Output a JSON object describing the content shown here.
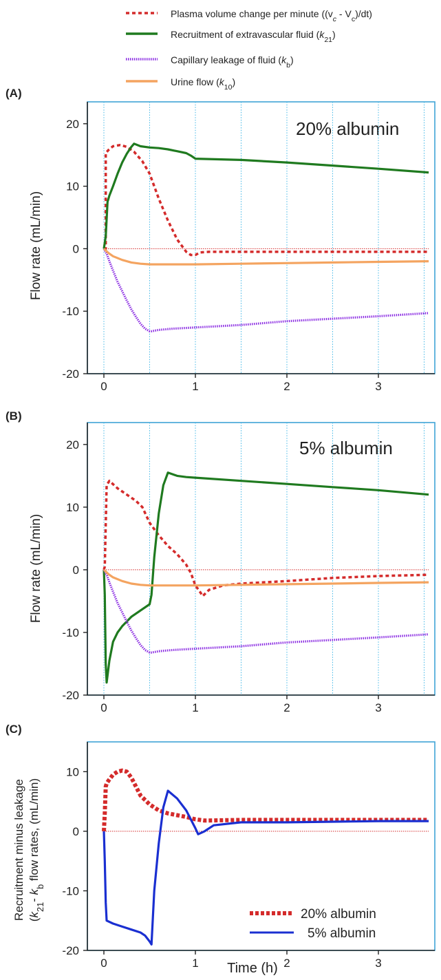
{
  "legend": {
    "items": [
      {
        "id": "plasma",
        "parts": [
          {
            "t": "Plasma volume change per minute ((v"
          },
          {
            "t": "c",
            "sub": true,
            "it": true
          },
          {
            "t": " - V"
          },
          {
            "t": "c",
            "sub": true
          },
          {
            "t": ")/dt)"
          }
        ]
      },
      {
        "id": "recruit",
        "parts": [
          {
            "t": "Recruitment of extravascular fluid ("
          },
          {
            "t": "k",
            "it": true
          },
          {
            "t": "21",
            "sub": true
          },
          {
            "t": ")"
          }
        ]
      },
      {
        "id": "leak",
        "parts": [
          {
            "t": "Capillary leakage of fluid ("
          },
          {
            "t": "k",
            "it": true
          },
          {
            "t": "b",
            "sub": true
          },
          {
            "t": ")"
          }
        ]
      },
      {
        "id": "urine",
        "parts": [
          {
            "t": "Urine flow ("
          },
          {
            "t": "k",
            "it": true
          },
          {
            "t": "10",
            "sub": true
          },
          {
            "t": ")"
          }
        ]
      }
    ]
  },
  "colors": {
    "plasma": "#d42b2b",
    "recruit": "#1f7a1f",
    "leak": "#8a2be2",
    "urine": "#f4a460",
    "diff20": "#d42b2b",
    "diff5": "#1a2fd1",
    "anno20": "#c0203a",
    "anno5": "#2437c4"
  },
  "panels": {
    "A": {
      "label": "(A)",
      "ylabel": "Flow rate  (mL/min)",
      "annotation": "20% albumin"
    },
    "B": {
      "label": "(B)",
      "ylabel": "Flow rate  (mL/min)",
      "annotation": "5% albumin"
    },
    "C": {
      "label": "(C)",
      "ylabel_line1": "Recruitment minus leakage",
      "ylabel_line2_parts": [
        {
          "t": "("
        },
        {
          "t": "k",
          "it": true
        },
        {
          "t": "21",
          "sub": true
        },
        {
          "t": "- "
        },
        {
          "t": "k",
          "it": true
        },
        {
          "t": "b",
          "sub": true
        },
        {
          "t": " flow rates, (mL/min)"
        }
      ],
      "xlabel": "Time (h)",
      "legend": [
        "20% albumin",
        "5% albumin"
      ]
    }
  },
  "chart_data": [
    {
      "type": "line",
      "panel": "A",
      "title": "",
      "xlabel": "",
      "ylabel": "Flow rate  (mL/min)",
      "xlim": [
        -0.17,
        3.62
      ],
      "ylim": [
        -20,
        23.5
      ],
      "xticks": [
        0,
        1,
        2,
        3
      ],
      "yticks": [
        20,
        10,
        0,
        -10,
        -20
      ],
      "vgrid": [
        0,
        0.5,
        1,
        1.5,
        2,
        2.5,
        3,
        3.5
      ],
      "zero_line": [
        0,
        3.55
      ],
      "series": [
        {
          "name": "Plasma volume change per minute",
          "key": "plasma",
          "style": "dashed",
          "x": [
            0,
            0.02,
            0.02,
            0.05,
            0.1,
            0.18,
            0.25,
            0.33,
            0.42,
            0.5,
            0.6,
            0.7,
            0.8,
            0.9,
            0.95,
            1.0,
            1.05,
            1.15,
            1.5,
            2.0,
            2.5,
            3.0,
            3.55
          ],
          "y": [
            0,
            0,
            15.3,
            15.8,
            16.4,
            16.6,
            16.3,
            15.5,
            14.0,
            12.0,
            8.0,
            4.5,
            1.5,
            -0.5,
            -1.0,
            -1.0,
            -0.6,
            -0.5,
            -0.5,
            -0.5,
            -0.5,
            -0.5,
            -0.5
          ]
        },
        {
          "name": "Recruitment of extravascular fluid",
          "key": "recruit",
          "style": "solid",
          "x": [
            0,
            0.02,
            0.04,
            0.06,
            0.1,
            0.15,
            0.2,
            0.25,
            0.3,
            0.33,
            0.4,
            0.5,
            0.6,
            0.7,
            0.8,
            0.9,
            0.95,
            1.0,
            1.5,
            2.0,
            2.5,
            3.0,
            3.55
          ],
          "y": [
            0,
            2.0,
            7.5,
            8.5,
            10.0,
            12.0,
            13.8,
            15.2,
            16.3,
            16.8,
            16.4,
            16.2,
            16.1,
            15.9,
            15.6,
            15.3,
            14.9,
            14.4,
            14.2,
            13.8,
            13.3,
            12.8,
            12.2
          ]
        },
        {
          "name": "Capillary leakage of fluid",
          "key": "leak",
          "style": "dotted",
          "x": [
            0,
            0.03,
            0.06,
            0.1,
            0.15,
            0.2,
            0.25,
            0.3,
            0.35,
            0.4,
            0.45,
            0.5,
            0.52,
            0.6,
            0.75,
            1.0,
            1.5,
            2.0,
            2.5,
            3.0,
            3.55
          ],
          "y": [
            0,
            -0.8,
            -2.0,
            -3.5,
            -5.3,
            -6.8,
            -8.3,
            -9.7,
            -10.9,
            -12.0,
            -12.8,
            -13.2,
            -13.2,
            -13.0,
            -12.8,
            -12.6,
            -12.2,
            -11.6,
            -11.2,
            -10.8,
            -10.3
          ]
        },
        {
          "name": "Urine flow",
          "key": "urine",
          "style": "solid",
          "x": [
            0,
            0.05,
            0.1,
            0.2,
            0.3,
            0.4,
            0.5,
            0.6,
            0.8,
            1.0,
            1.5,
            2.0,
            2.5,
            3.0,
            3.55
          ],
          "y": [
            0,
            -0.7,
            -1.2,
            -1.8,
            -2.2,
            -2.4,
            -2.5,
            -2.5,
            -2.5,
            -2.5,
            -2.4,
            -2.3,
            -2.2,
            -2.1,
            -2.0
          ]
        }
      ]
    },
    {
      "type": "line",
      "panel": "B",
      "title": "",
      "xlabel": "",
      "ylabel": "Flow rate  (mL/min)",
      "xlim": [
        -0.17,
        3.62
      ],
      "ylim": [
        -20,
        23.5
      ],
      "xticks": [
        0,
        1,
        2,
        3
      ],
      "yticks": [
        20,
        10,
        0,
        -10,
        -20
      ],
      "vgrid": [
        0,
        0.5,
        1,
        1.5,
        2,
        2.5,
        3,
        3.5
      ],
      "zero_line": [
        0,
        3.55
      ],
      "series": [
        {
          "name": "Plasma volume change per minute",
          "key": "plasma",
          "style": "dashed",
          "x": [
            0,
            0.01,
            0.03,
            0.06,
            0.15,
            0.25,
            0.35,
            0.42,
            0.5,
            0.6,
            0.7,
            0.8,
            0.9,
            0.95,
            1.0,
            1.05,
            1.08,
            1.15,
            1.3,
            1.5,
            2.0,
            2.5,
            3.0,
            3.55
          ],
          "y": [
            0,
            0.5,
            13.5,
            14.2,
            13.0,
            12.0,
            11.0,
            10.0,
            7.5,
            5.5,
            3.8,
            2.5,
            0.8,
            -0.5,
            -2.5,
            -3.5,
            -4.2,
            -3.2,
            -2.5,
            -2.2,
            -1.8,
            -1.3,
            -1.0,
            -0.8
          ]
        },
        {
          "name": "Recruitment of extravascular fluid",
          "key": "recruit",
          "style": "solid",
          "x": [
            0,
            0.01,
            0.02,
            0.03,
            0.06,
            0.1,
            0.15,
            0.2,
            0.3,
            0.4,
            0.5,
            0.52,
            0.55,
            0.6,
            0.65,
            0.7,
            0.8,
            0.9,
            1.0,
            1.5,
            2.0,
            2.5,
            3.0,
            3.55
          ],
          "y": [
            0,
            -4.0,
            -15.0,
            -18.0,
            -14.5,
            -11.5,
            -10.0,
            -9.0,
            -7.5,
            -6.5,
            -5.5,
            -4.0,
            2.0,
            9.0,
            13.5,
            15.5,
            15.0,
            14.8,
            14.7,
            14.2,
            13.7,
            13.2,
            12.7,
            12.0
          ]
        },
        {
          "name": "Capillary leakage of fluid",
          "key": "leak",
          "style": "dotted",
          "x": [
            0,
            0.03,
            0.06,
            0.1,
            0.15,
            0.2,
            0.25,
            0.3,
            0.35,
            0.4,
            0.45,
            0.5,
            0.52,
            0.6,
            0.75,
            1.0,
            1.5,
            2.0,
            2.5,
            3.0,
            3.55
          ],
          "y": [
            0,
            -0.8,
            -2.0,
            -3.5,
            -5.3,
            -6.8,
            -8.3,
            -9.7,
            -10.9,
            -12.0,
            -12.8,
            -13.2,
            -13.2,
            -13.0,
            -12.8,
            -12.6,
            -12.2,
            -11.6,
            -11.2,
            -10.8,
            -10.3
          ]
        },
        {
          "name": "Urine flow",
          "key": "urine",
          "style": "solid",
          "x": [
            0,
            0.05,
            0.1,
            0.2,
            0.3,
            0.4,
            0.5,
            0.6,
            0.8,
            1.0,
            1.5,
            2.0,
            2.5,
            3.0,
            3.55
          ],
          "y": [
            0,
            -0.7,
            -1.2,
            -1.8,
            -2.2,
            -2.4,
            -2.5,
            -2.5,
            -2.5,
            -2.5,
            -2.4,
            -2.3,
            -2.2,
            -2.1,
            -2.0
          ]
        }
      ]
    },
    {
      "type": "line",
      "panel": "C",
      "title": "",
      "xlabel": "Time (h)",
      "ylabel": "Recruitment minus leakage",
      "xlim": [
        -0.17,
        3.62
      ],
      "ylim": [
        -20,
        15
      ],
      "xticks": [
        0,
        1,
        2,
        3
      ],
      "yticks": [
        10,
        0,
        -10,
        -20
      ],
      "zero_line": [
        0,
        3.55
      ],
      "series": [
        {
          "name": "20% albumin",
          "key": "diff20",
          "style": "thickdash",
          "x": [
            0,
            0.01,
            0.02,
            0.03,
            0.05,
            0.1,
            0.15,
            0.2,
            0.25,
            0.3,
            0.35,
            0.4,
            0.5,
            0.6,
            0.7,
            0.8,
            0.9,
            1.0,
            1.1,
            1.5,
            2.0,
            2.5,
            3.0,
            3.55
          ],
          "y": [
            0,
            3.0,
            7.5,
            8.0,
            8.5,
            9.5,
            10.0,
            10.2,
            10.0,
            9.0,
            7.5,
            6.0,
            4.5,
            3.5,
            3.0,
            2.7,
            2.4,
            2.0,
            1.8,
            1.9,
            1.9,
            1.9,
            1.9,
            1.9
          ]
        },
        {
          "name": "5% albumin",
          "key": "diff5",
          "style": "solid",
          "x": [
            0,
            0.01,
            0.02,
            0.03,
            0.1,
            0.2,
            0.3,
            0.4,
            0.45,
            0.5,
            0.52,
            0.55,
            0.6,
            0.65,
            0.7,
            0.8,
            0.9,
            1.0,
            1.03,
            1.1,
            1.2,
            1.5,
            2.0,
            2.5,
            3.0,
            3.55
          ],
          "y": [
            0,
            -5.0,
            -12.0,
            -15.0,
            -15.5,
            -16.0,
            -16.5,
            -17.0,
            -17.5,
            -18.5,
            -19.0,
            -10.0,
            -2.0,
            4.0,
            6.8,
            5.5,
            3.5,
            0.5,
            -0.5,
            0.0,
            1.0,
            1.5,
            1.5,
            1.6,
            1.7,
            1.7
          ]
        }
      ]
    }
  ]
}
